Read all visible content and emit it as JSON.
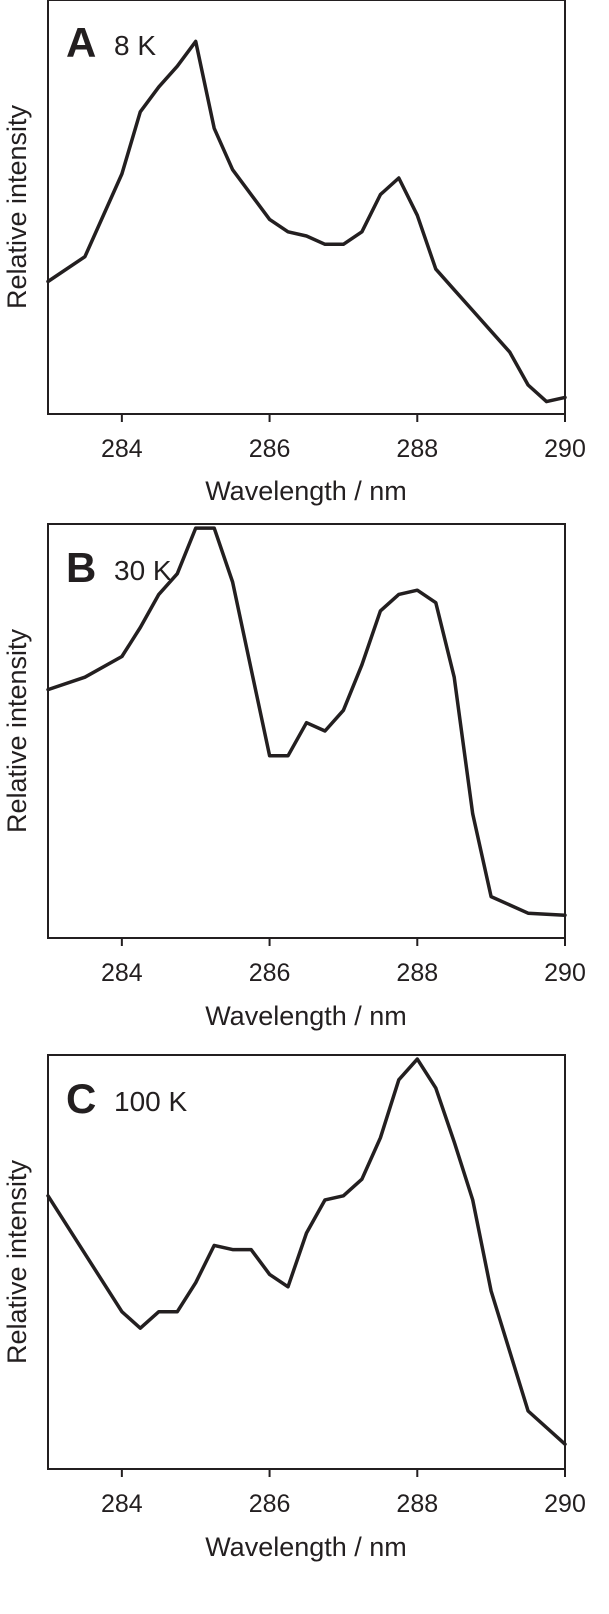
{
  "chart_data": [
    {
      "type": "line",
      "panel_label": "A",
      "annotation": "8 K",
      "xlabel": "Wavelength / nm",
      "ylabel": "Relative intensity",
      "xlim": [
        283,
        290
      ],
      "ylim": [
        0,
        1
      ],
      "xticks": [
        284,
        286,
        288,
        290
      ],
      "x": [
        283,
        283.5,
        284,
        284.25,
        284.5,
        284.75,
        285,
        285.25,
        285.5,
        286,
        286.25,
        286.5,
        286.75,
        287,
        287.25,
        287.5,
        287.75,
        288,
        288.25,
        288.5,
        288.75,
        289,
        289.25,
        289.5,
        289.75,
        290
      ],
      "y": [
        0.32,
        0.38,
        0.58,
        0.73,
        0.79,
        0.84,
        0.9,
        0.69,
        0.59,
        0.47,
        0.44,
        0.43,
        0.41,
        0.41,
        0.44,
        0.53,
        0.57,
        0.48,
        0.35,
        0.3,
        0.25,
        0.2,
        0.15,
        0.07,
        0.03,
        0.04
      ]
    },
    {
      "type": "line",
      "panel_label": "B",
      "annotation": "30 K",
      "xlabel": "Wavelength / nm",
      "ylabel": "Relative intensity",
      "xlim": [
        283,
        290
      ],
      "ylim": [
        0,
        1
      ],
      "xticks": [
        284,
        286,
        288,
        290
      ],
      "x": [
        283,
        283.5,
        284,
        284.25,
        284.5,
        284.75,
        285,
        285.25,
        285.5,
        286,
        286.25,
        286.5,
        286.75,
        287,
        287.25,
        287.5,
        287.75,
        288,
        288.25,
        288.5,
        288.75,
        289,
        289.5,
        290
      ],
      "y": [
        0.6,
        0.63,
        0.68,
        0.75,
        0.83,
        0.88,
        0.99,
        0.99,
        0.86,
        0.44,
        0.44,
        0.52,
        0.5,
        0.55,
        0.66,
        0.79,
        0.83,
        0.84,
        0.81,
        0.63,
        0.3,
        0.1,
        0.06,
        0.055
      ]
    },
    {
      "type": "line",
      "panel_label": "C",
      "annotation": "100 K",
      "xlabel": "Wavelength / nm",
      "ylabel": "Relative intensity",
      "xlim": [
        283,
        290
      ],
      "ylim": [
        0,
        1
      ],
      "xticks": [
        284,
        286,
        288,
        290
      ],
      "x": [
        283,
        283.5,
        284,
        284.25,
        284.5,
        284.75,
        285,
        285.25,
        285.5,
        285.75,
        286,
        286.25,
        286.5,
        286.75,
        287,
        287.25,
        287.5,
        287.75,
        288,
        288.25,
        288.5,
        288.75,
        289,
        289.5,
        290
      ],
      "y": [
        0.66,
        0.52,
        0.38,
        0.34,
        0.38,
        0.38,
        0.45,
        0.54,
        0.53,
        0.53,
        0.47,
        0.44,
        0.57,
        0.65,
        0.66,
        0.7,
        0.8,
        0.94,
        0.99,
        0.92,
        0.79,
        0.65,
        0.43,
        0.14,
        0.06
      ]
    }
  ]
}
